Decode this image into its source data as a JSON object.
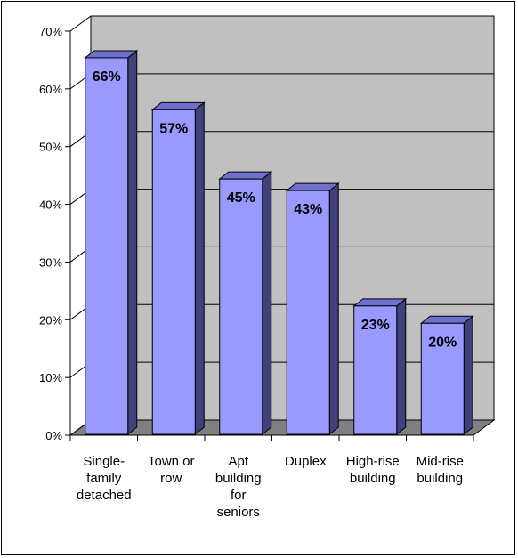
{
  "chart_data": {
    "type": "bar",
    "categories": [
      [
        "Single-",
        "family",
        "detached"
      ],
      [
        "Town or",
        "row"
      ],
      [
        "Apt",
        "building",
        "for",
        "seniors"
      ],
      [
        "Duplex"
      ],
      [
        "High-rise",
        "building"
      ],
      [
        "Mid-rise",
        "building"
      ]
    ],
    "values": [
      66,
      57,
      45,
      43,
      23,
      20
    ],
    "data_labels": [
      "66%",
      "57%",
      "45%",
      "43%",
      "23%",
      "20%"
    ],
    "y_ticks": [
      0,
      10,
      20,
      30,
      40,
      50,
      60,
      70
    ],
    "y_tick_labels": [
      "0%",
      "10%",
      "20%",
      "30%",
      "40%",
      "50%",
      "60%",
      "70%"
    ],
    "ylim": [
      0,
      70
    ],
    "title": "",
    "xlabel": "",
    "ylabel": "",
    "grid": true,
    "legend": "none",
    "style": "3d-column",
    "colors": {
      "bar_face": "#9999ff",
      "bar_side": "#40407a",
      "bar_top": "#6f6fcf",
      "back_wall": "#c0c0c0",
      "floor": "#808080",
      "gridline": "#000000"
    }
  }
}
